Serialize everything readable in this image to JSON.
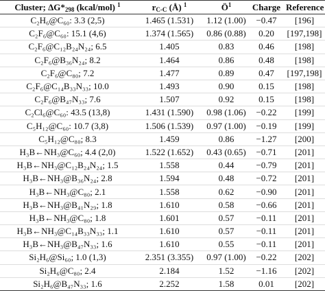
{
  "table": {
    "header": [
      {
        "text": "Cluster; ΔG*",
        "sub": "298",
        "tail": " (kcal/mol) ",
        "sup": "1"
      },
      {
        "text": "r",
        "sub": "C-C",
        "tail": " (Å) ",
        "sup": "1"
      },
      {
        "text": "Ö",
        "sup": "1"
      },
      {
        "text": "Charge"
      },
      {
        "text": "Reference"
      }
    ],
    "rows": [
      [
        "C₂H₆@C₆₀: 3.3 (2,5)",
        "1.465 (1.531)",
        "1.12 (1.00)",
        "−0.47",
        "[196]"
      ],
      [
        "C₂F₆@C₆₀: 15.1 (4,6)",
        "1.374 (1.565)",
        "0.86 (0.88)",
        "0.20",
        "[197,198]"
      ],
      [
        "C₂F₆@C₁₂B₂₄N₂₄; 6.5",
        "1.405",
        "0.83",
        "0.46",
        "[198]"
      ],
      [
        "C₂F₆@B₃₆N₂₄; 8.2",
        "1.464",
        "0.86",
        "0.48",
        "[198]"
      ],
      [
        "C₂F₆@C₈₀; 7.2",
        "1.477",
        "0.89",
        "0.47",
        "[197,198]"
      ],
      [
        "C₂F₆@C₁₄B₃₃N₃₃; 10.0",
        "1.493",
        "0.90",
        "0.15",
        "[198]"
      ],
      [
        "C₂F₆@B₄₇N₃₃; 7.6",
        "1.507",
        "0.92",
        "0.15",
        "[198]"
      ],
      [
        "C₂Cl₆@C₆₀: 43.5 (13,8)",
        "1.431 (1.590)",
        "0.98 (1.06)",
        "−0.22",
        "[199]"
      ],
      [
        "C₅H₁₂@C₆₀: 10.7 (3,8)",
        "1.506 (1.539)",
        "0.97 (1.00)",
        "−0.19",
        "[199]"
      ],
      [
        "C₅H₁₂@C₈₀; 8.3",
        "1.459",
        "0.86",
        "−1.27",
        "[200]"
      ],
      [
        "H₃B←NH₃@C₆₀; 4.4 (2,0)",
        "1.522 (1.652)",
        "0.43 (0.65)",
        "−0.71",
        "[201]"
      ],
      [
        "H₃B←NH₃@C₁₂B₂₄N₂₄; 1.5",
        "1.558",
        "0.44",
        "−0.79",
        "[201]"
      ],
      [
        "H₃B←NH₃@B₃₆N₂₄; 2.8",
        "1.594",
        "0.48",
        "−0.72",
        "[201]"
      ],
      [
        "H₃B←NH₃@C₈₀; 2.1",
        "1.558",
        "0.62",
        "−0.90",
        "[201]"
      ],
      [
        "H₃B←NH₃@B₄₁N₂₉; 1.8",
        "1.610",
        "0.58",
        "−0.66",
        "[201]"
      ],
      [
        "H₃B←NH₃@C₈₀; 1.8",
        "1.601",
        "0.57",
        "−0.11",
        "[201]"
      ],
      [
        "H₃B←NH₃@C₁₄B₃₃N₃₃; 1.1",
        "1.610",
        "0.57",
        "−0.11",
        "[201]"
      ],
      [
        "H₃B←NH₃@B₄₇N₃₃; 1.6",
        "1.610",
        "0.55",
        "−0.11",
        "[201]"
      ],
      [
        "Si₂H₆@Si₆₀; 1.0 (1,3)",
        "2.351 (3.355)",
        "0.97 (1.00)",
        "−0.22",
        "[202]"
      ],
      [
        "Si₂H₆@C₈₀; 2.4",
        "2.184",
        "1.52",
        "−1.16",
        "[202]"
      ],
      [
        "Si₂H₆@B₄₇N₃₃; 1.6",
        "2.252",
        "1.58",
        "0.01",
        "[202]"
      ]
    ]
  }
}
